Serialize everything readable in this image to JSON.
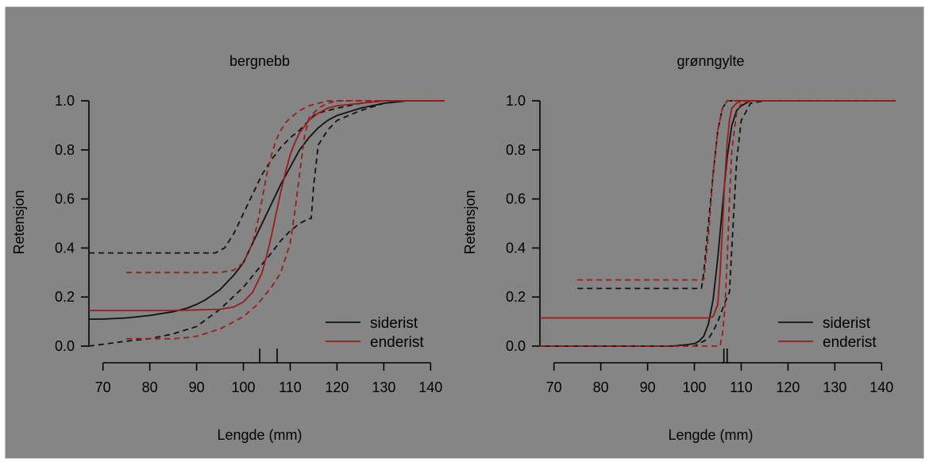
{
  "colors": {
    "background": "#858585",
    "frame": "#ffffff",
    "siderist": "#111111",
    "enderist": "#9b1c1c"
  },
  "chart_data": [
    {
      "type": "line",
      "title": "bergnebb",
      "xlabel": "Lengde (mm)",
      "ylabel": "Retensjon",
      "xlim": [
        67,
        143
      ],
      "ylim": [
        0,
        1
      ],
      "xticks": [
        "70",
        "80",
        "90",
        "100",
        "110",
        "120",
        "130",
        "140"
      ],
      "yticks": [
        "0.0",
        "0.2",
        "0.4",
        "0.6",
        "0.8",
        "1.0"
      ],
      "grid": false,
      "legend_position": "bottom-right",
      "legend": [
        "siderist",
        "enderist"
      ],
      "rug_ticks_x": [
        103.5,
        107.2
      ],
      "series": [
        {
          "name": "siderist",
          "style": "solid",
          "color_key": "siderist",
          "x": [
            67,
            70,
            75,
            80,
            85,
            88,
            90,
            92,
            95,
            98,
            100,
            102,
            104,
            106,
            108,
            110,
            112,
            114,
            116,
            118,
            120,
            125,
            130,
            135,
            140,
            143
          ],
          "y": [
            0.11,
            0.11,
            0.115,
            0.125,
            0.14,
            0.155,
            0.17,
            0.19,
            0.23,
            0.29,
            0.34,
            0.42,
            0.5,
            0.58,
            0.66,
            0.73,
            0.8,
            0.85,
            0.89,
            0.92,
            0.94,
            0.97,
            0.99,
            1.0,
            1.0,
            1.0
          ]
        },
        {
          "name": "",
          "style": "dashed",
          "color_key": "siderist",
          "x": [
            67,
            75,
            85,
            94,
            96,
            98,
            100,
            102,
            104,
            106,
            108,
            110,
            112,
            113,
            114,
            115,
            116,
            118,
            120,
            125,
            130,
            135,
            140,
            143
          ],
          "y": [
            0.38,
            0.38,
            0.38,
            0.38,
            0.4,
            0.46,
            0.54,
            0.62,
            0.7,
            0.76,
            0.81,
            0.85,
            0.88,
            0.9,
            0.92,
            0.94,
            0.95,
            0.96,
            0.97,
            0.99,
            1.0,
            1.0,
            1.0,
            1.0
          ]
        },
        {
          "name": "",
          "style": "dashed",
          "color_key": "siderist",
          "x": [
            67,
            75,
            80,
            85,
            90,
            95,
            100,
            103,
            106,
            108,
            110,
            112,
            114,
            114.5,
            115,
            116,
            118,
            120,
            125,
            130,
            135,
            140,
            143
          ],
          "y": [
            0.0,
            0.02,
            0.03,
            0.05,
            0.08,
            0.15,
            0.24,
            0.31,
            0.38,
            0.43,
            0.47,
            0.5,
            0.52,
            0.52,
            0.65,
            0.82,
            0.88,
            0.92,
            0.96,
            0.99,
            1.0,
            1.0,
            1.0
          ]
        },
        {
          "name": "enderist",
          "style": "solid",
          "color_key": "enderist",
          "x": [
            67,
            75,
            85,
            95,
            98,
            100,
            102,
            104,
            105,
            106,
            107,
            108,
            109,
            110,
            111,
            112,
            114,
            116,
            118,
            120,
            125,
            130,
            135,
            140,
            143
          ],
          "y": [
            0.145,
            0.145,
            0.145,
            0.15,
            0.16,
            0.18,
            0.22,
            0.3,
            0.37,
            0.45,
            0.54,
            0.63,
            0.71,
            0.78,
            0.83,
            0.87,
            0.92,
            0.95,
            0.97,
            0.98,
            0.99,
            1.0,
            1.0,
            1.0,
            1.0
          ]
        },
        {
          "name": "",
          "style": "dashed",
          "color_key": "enderist",
          "x": [
            75,
            85,
            95,
            98,
            100,
            102,
            103,
            104,
            105,
            106,
            107,
            108,
            109,
            110,
            112,
            114,
            116,
            118,
            120,
            125,
            130,
            135,
            140,
            143
          ],
          "y": [
            0.3,
            0.3,
            0.3,
            0.31,
            0.34,
            0.42,
            0.5,
            0.6,
            0.7,
            0.78,
            0.84,
            0.88,
            0.91,
            0.93,
            0.96,
            0.98,
            0.99,
            1.0,
            1.0,
            1.0,
            1.0,
            1.0,
            1.0,
            1.0
          ]
        },
        {
          "name": "",
          "style": "dashed",
          "color_key": "enderist",
          "x": [
            75,
            80,
            85,
            88,
            90,
            95,
            100,
            103,
            106,
            108,
            110,
            111,
            112,
            113,
            114,
            116,
            118,
            120,
            125,
            130,
            135,
            140,
            143
          ],
          "y": [
            0.03,
            0.03,
            0.03,
            0.035,
            0.04,
            0.07,
            0.12,
            0.17,
            0.24,
            0.3,
            0.42,
            0.55,
            0.7,
            0.85,
            0.93,
            0.97,
            0.99,
            1.0,
            1.0,
            1.0,
            1.0,
            1.0,
            1.0
          ]
        }
      ]
    },
    {
      "type": "line",
      "title": "grønngylte",
      "xlabel": "Lengde (mm)",
      "ylabel": "Retensjon",
      "xlim": [
        67,
        143
      ],
      "ylim": [
        0,
        1
      ],
      "xticks": [
        "70",
        "80",
        "90",
        "100",
        "110",
        "120",
        "130",
        "140"
      ],
      "yticks": [
        "0.0",
        "0.2",
        "0.4",
        "0.6",
        "0.8",
        "1.0"
      ],
      "grid": false,
      "legend_position": "bottom-right",
      "legend": [
        "siderist",
        "enderist"
      ],
      "rug_ticks_x": [
        106.3,
        107.0
      ],
      "series": [
        {
          "name": "siderist",
          "style": "solid",
          "color_key": "siderist",
          "x": [
            67,
            80,
            90,
            95,
            98,
            100,
            101,
            102,
            103,
            104,
            105,
            106,
            107,
            108,
            109,
            110,
            112,
            115,
            120,
            130,
            143
          ],
          "y": [
            0.0,
            0.0,
            0.0,
            0.0,
            0.005,
            0.01,
            0.02,
            0.04,
            0.09,
            0.19,
            0.36,
            0.57,
            0.77,
            0.9,
            0.96,
            0.98,
            1.0,
            1.0,
            1.0,
            1.0,
            1.0
          ]
        },
        {
          "name": "",
          "style": "dashed",
          "color_key": "siderist",
          "x": [
            75,
            90,
            101.5,
            102,
            103,
            104,
            105,
            106,
            107,
            108,
            143
          ],
          "y": [
            0.235,
            0.235,
            0.235,
            0.3,
            0.5,
            0.7,
            0.88,
            0.97,
            1.0,
            1.0,
            1.0
          ]
        },
        {
          "name": "",
          "style": "dashed",
          "color_key": "siderist",
          "x": [
            67,
            90,
            100,
            103,
            104,
            105,
            106,
            107,
            107.5,
            108,
            109,
            110,
            112,
            115,
            120,
            143
          ],
          "y": [
            0.0,
            0.0,
            0.0,
            0.03,
            0.06,
            0.1,
            0.15,
            0.2,
            0.22,
            0.4,
            0.75,
            0.92,
            0.99,
            1.0,
            1.0,
            1.0
          ]
        },
        {
          "name": "enderist",
          "style": "solid",
          "color_key": "enderist",
          "x": [
            67,
            90,
            103,
            104,
            105,
            105.5,
            106,
            106.5,
            107,
            107.5,
            108,
            109,
            110,
            112,
            115,
            143
          ],
          "y": [
            0.115,
            0.115,
            0.115,
            0.12,
            0.17,
            0.3,
            0.48,
            0.68,
            0.83,
            0.92,
            0.97,
            0.99,
            1.0,
            1.0,
            1.0,
            1.0
          ]
        },
        {
          "name": "",
          "style": "dashed",
          "color_key": "enderist",
          "x": [
            75,
            90,
            102,
            103,
            104,
            105,
            106,
            107,
            108,
            143
          ],
          "y": [
            0.27,
            0.27,
            0.27,
            0.45,
            0.7,
            0.88,
            0.97,
            1.0,
            1.0,
            1.0
          ]
        },
        {
          "name": "",
          "style": "dashed",
          "color_key": "enderist",
          "x": [
            67,
            90,
            105.5,
            106,
            106.5,
            107,
            107.5,
            108,
            109,
            110,
            112,
            143
          ],
          "y": [
            0.0,
            0.0,
            0.0,
            0.05,
            0.15,
            0.35,
            0.6,
            0.8,
            0.95,
            0.99,
            1.0,
            1.0
          ]
        }
      ]
    }
  ]
}
